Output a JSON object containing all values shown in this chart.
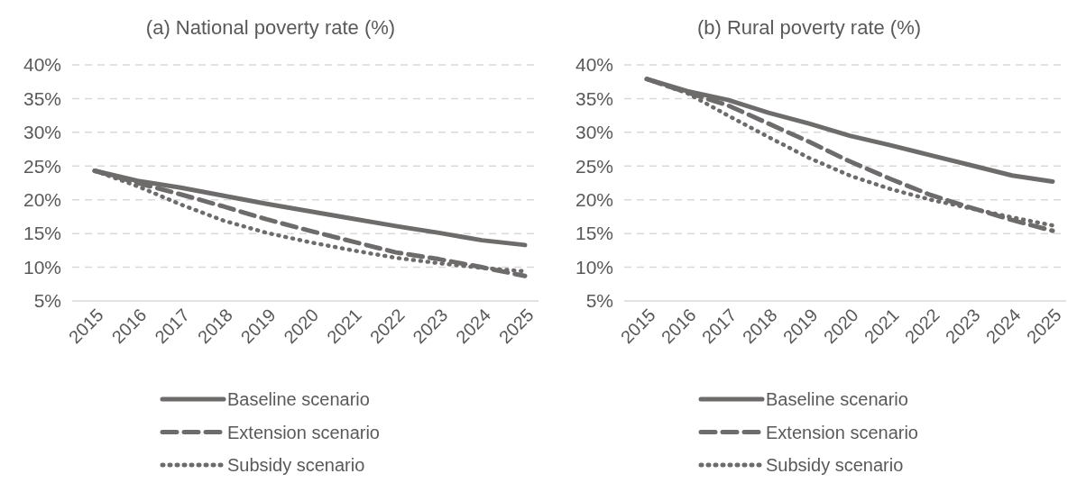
{
  "chart_data": [
    {
      "type": "line",
      "title": "(a) National poverty rate (%)",
      "categories": [
        "2015",
        "2016",
        "2017",
        "2018",
        "2019",
        "2020",
        "2021",
        "2022",
        "2023",
        "2024",
        "2025"
      ],
      "ylim": [
        5,
        40
      ],
      "yticks": [
        {
          "value": 5,
          "label": "5%"
        },
        {
          "value": 10,
          "label": "10%"
        },
        {
          "value": 15,
          "label": "15%"
        },
        {
          "value": 20,
          "label": "20%"
        },
        {
          "value": 25,
          "label": "25%"
        },
        {
          "value": 30,
          "label": "30%"
        },
        {
          "value": 35,
          "label": "35%"
        },
        {
          "value": 40,
          "label": "40%"
        }
      ],
      "grid": "y",
      "legend": "bottom",
      "marker": "none",
      "series": [
        {
          "name": "Baseline scenario",
          "color": "#6e6b6b",
          "line_style": "solid",
          "values": [
            24.3,
            22.8,
            21.8,
            20.6,
            19.4,
            18.3,
            17.2,
            16.1,
            15.1,
            14.0,
            13.3
          ]
        },
        {
          "name": "Extension scenario",
          "color": "#6e6b6b",
          "line_style": "dashed",
          "values": [
            24.3,
            22.5,
            20.8,
            19.0,
            17.1,
            15.4,
            13.8,
            12.2,
            11.2,
            10.0,
            8.7
          ]
        },
        {
          "name": "Subsidy scenario",
          "color": "#6e6b6b",
          "line_style": "dotted",
          "values": [
            24.3,
            22.0,
            19.3,
            16.9,
            15.1,
            13.7,
            12.5,
            11.4,
            10.6,
            9.9,
            9.4
          ]
        }
      ]
    },
    {
      "type": "line",
      "title": "(b) Rural poverty rate (%)",
      "categories": [
        "2015",
        "2016",
        "2017",
        "2018",
        "2019",
        "2020",
        "2021",
        "2022",
        "2023",
        "2024",
        "2025"
      ],
      "ylim": [
        5,
        40
      ],
      "yticks": [
        {
          "value": 5,
          "label": "5%"
        },
        {
          "value": 10,
          "label": "10%"
        },
        {
          "value": 15,
          "label": "15%"
        },
        {
          "value": 20,
          "label": "20%"
        },
        {
          "value": 25,
          "label": "25%"
        },
        {
          "value": 30,
          "label": "30%"
        },
        {
          "value": 35,
          "label": "35%"
        },
        {
          "value": 40,
          "label": "40%"
        }
      ],
      "grid": "y",
      "legend": "bottom",
      "marker": "none",
      "series": [
        {
          "name": "Baseline scenario",
          "color": "#6e6b6b",
          "line_style": "solid",
          "values": [
            37.9,
            36.1,
            34.8,
            32.9,
            31.3,
            29.5,
            28.1,
            26.6,
            25.1,
            23.6,
            22.7
          ]
        },
        {
          "name": "Extension scenario",
          "color": "#6e6b6b",
          "line_style": "dashed",
          "values": [
            37.9,
            35.9,
            34.0,
            31.3,
            28.6,
            25.7,
            23.1,
            20.7,
            18.8,
            17.0,
            15.4
          ]
        },
        {
          "name": "Subsidy scenario",
          "color": "#6e6b6b",
          "line_style": "dotted",
          "values": [
            37.9,
            35.8,
            32.5,
            29.3,
            26.2,
            23.6,
            21.6,
            20.0,
            18.7,
            17.4,
            16.2
          ]
        }
      ]
    }
  ]
}
